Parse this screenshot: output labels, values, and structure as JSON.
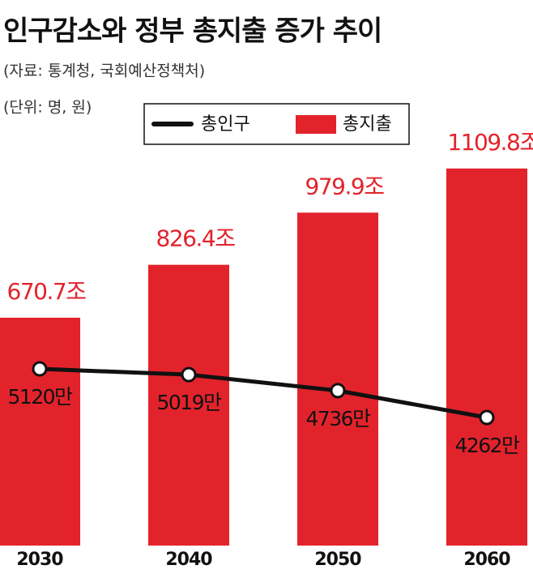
{
  "chart_data": {
    "type": "bar_line",
    "title": "인구감소와 정부 총지출 증가 추이",
    "subtitle": "(자료: 통계청, 국회예산정책처)",
    "unit_note": "(단위: 명, 원)",
    "categories": [
      "2030",
      "2040",
      "2050",
      "2060"
    ],
    "series": [
      {
        "name": "총지출",
        "type": "bar",
        "color": "#e3232c",
        "axis": "y",
        "values": [
          670.7,
          826.4,
          979.9,
          1109.8
        ],
        "value_labels": [
          "670.7조",
          "826.4조",
          "979.9조",
          "1109.8조"
        ]
      },
      {
        "name": "총인구",
        "type": "line",
        "color": "#111111",
        "axis": "y2",
        "values": [
          5120,
          5019,
          4736,
          4262
        ],
        "value_labels": [
          "5120만",
          "5019만",
          "4736만",
          "4262만"
        ]
      }
    ],
    "ylim": [
      0,
      1150
    ],
    "y2lim": [
      2000,
      8900
    ],
    "legend": "top"
  }
}
